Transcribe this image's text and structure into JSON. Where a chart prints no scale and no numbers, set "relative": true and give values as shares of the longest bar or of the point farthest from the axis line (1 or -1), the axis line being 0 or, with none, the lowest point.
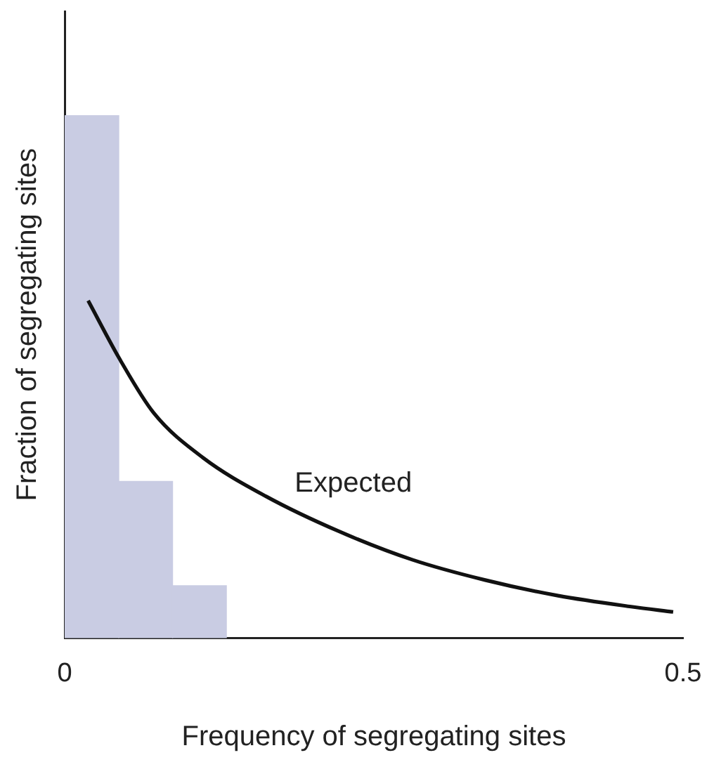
{
  "chart_data": {
    "type": "histogram",
    "relative": true,
    "xlabel": "Frequency of segregating sites",
    "ylabel": "Fraction of segregating sites",
    "bins": [
      0,
      0.044,
      0.087,
      0.131
    ],
    "values": [
      1,
      0.3,
      0.1
    ],
    "color": "#c9cce3",
    "xlim": [
      0,
      0.5
    ],
    "xticks": [
      0,
      0.5
    ],
    "grid": false,
    "legend": false,
    "marker": "none",
    "series": [
      {
        "type": "line",
        "name": "Expected",
        "color": "#111111",
        "x": [
          0.019,
          0.045,
          0.072,
          0.112,
          0.163,
          0.222,
          0.281,
          0.34,
          0.399,
          0.458,
          0.492
        ],
        "values": [
          0.646,
          0.532,
          0.431,
          0.345,
          0.271,
          0.204,
          0.15,
          0.111,
          0.081,
          0.06,
          0.05
        ]
      }
    ]
  }
}
